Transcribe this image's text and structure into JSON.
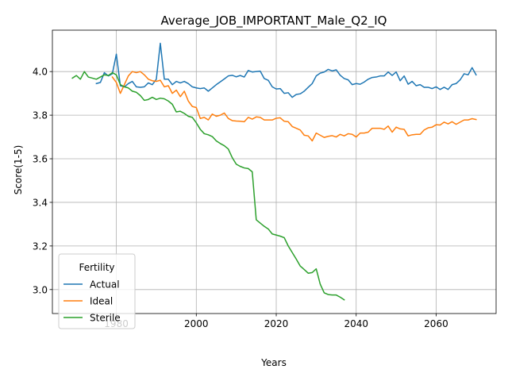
{
  "chart_data": {
    "type": "line",
    "title": "Average_JOB_IMPORTANT_Male_Q2_IQ",
    "xlabel": "Years",
    "ylabel": "Score(1-5)",
    "xlim": [
      1964,
      2075
    ],
    "ylim": [
      2.89,
      4.19
    ],
    "xticks": [
      1980,
      2000,
      2020,
      2040,
      2060
    ],
    "yticks": [
      3.0,
      3.2,
      3.4,
      3.6,
      3.8,
      4.0
    ],
    "grid": true,
    "legend": {
      "title": "Fertility",
      "position": "lower-left"
    },
    "series": [
      {
        "name": "Actual",
        "color": "#1f77b4",
        "x": [
          1975,
          1976,
          1977,
          1978,
          1979,
          1980,
          1981,
          1982,
          1983,
          1984,
          1985,
          1986,
          1987,
          1988,
          1989,
          1990,
          1991,
          1992,
          1993,
          1994,
          1995,
          1996,
          1997,
          1998,
          1999,
          2000,
          2001,
          2002,
          2003,
          2004,
          2005,
          2006,
          2007,
          2008,
          2009,
          2010,
          2011,
          2012,
          2013,
          2014,
          2015,
          2016,
          2017,
          2018,
          2019,
          2020,
          2021,
          2022,
          2023,
          2024,
          2025,
          2026,
          2027,
          2028,
          2029,
          2030,
          2031,
          2032,
          2033,
          2034,
          2035,
          2036,
          2037,
          2038,
          2039,
          2040,
          2041,
          2042,
          2043,
          2044,
          2045,
          2046,
          2047,
          2048,
          2049,
          2050,
          2051,
          2052,
          2053,
          2054,
          2055,
          2056,
          2057,
          2058,
          2059,
          2060,
          2061,
          2062,
          2063,
          2064,
          2065,
          2066,
          2067,
          2068,
          2069,
          2070
        ],
        "y": [
          3.945,
          3.95,
          3.995,
          3.98,
          3.99,
          4.08,
          3.935,
          3.93,
          3.945,
          3.955,
          3.93,
          3.928,
          3.93,
          3.948,
          3.94,
          3.965,
          4.13,
          3.965,
          3.965,
          3.94,
          3.955,
          3.948,
          3.955,
          3.945,
          3.93,
          3.925,
          3.922,
          3.925,
          3.91,
          3.925,
          3.94,
          3.953,
          3.966,
          3.98,
          3.983,
          3.976,
          3.982,
          3.975,
          4.005,
          3.998,
          4.0,
          4.002,
          3.968,
          3.96,
          3.93,
          3.92,
          3.922,
          3.9,
          3.903,
          3.882,
          3.895,
          3.898,
          3.91,
          3.928,
          3.945,
          3.98,
          3.993,
          3.998,
          4.01,
          4.003,
          4.008,
          3.983,
          3.968,
          3.962,
          3.94,
          3.945,
          3.942,
          3.952,
          3.965,
          3.973,
          3.975,
          3.98,
          3.98,
          3.998,
          3.982,
          3.998,
          3.958,
          3.98,
          3.942,
          3.955,
          3.935,
          3.94,
          3.928,
          3.928,
          3.922,
          3.93,
          3.918,
          3.928,
          3.918,
          3.94,
          3.945,
          3.962,
          3.99,
          3.985,
          4.018,
          3.985
        ]
      },
      {
        "name": "Ideal",
        "color": "#ff7f0e",
        "x": [
          1979,
          1980,
          1981,
          1982,
          1983,
          1984,
          1985,
          1986,
          1987,
          1988,
          1989,
          1990,
          1991,
          1992,
          1993,
          1994,
          1995,
          1996,
          1997,
          1998,
          1999,
          2000,
          2001,
          2002,
          2003,
          2004,
          2005,
          2006,
          2007,
          2008,
          2009,
          2010,
          2011,
          2012,
          2013,
          2014,
          2015,
          2016,
          2017,
          2018,
          2019,
          2020,
          2021,
          2022,
          2023,
          2024,
          2025,
          2026,
          2027,
          2028,
          2029,
          2030,
          2031,
          2032,
          2033,
          2034,
          2035,
          2036,
          2037,
          2038,
          2039,
          2040,
          2041,
          2042,
          2043,
          2044,
          2045,
          2046,
          2047,
          2048,
          2049,
          2050,
          2051,
          2052,
          2053,
          2054,
          2055,
          2056,
          2057,
          2058,
          2059,
          2060,
          2061,
          2062,
          2063,
          2064,
          2065,
          2066,
          2067,
          2068,
          2069,
          2070
        ],
        "y": [
          3.975,
          3.95,
          3.9,
          3.94,
          3.98,
          4.0,
          3.995,
          4.0,
          3.985,
          3.965,
          3.958,
          3.955,
          3.96,
          3.93,
          3.935,
          3.9,
          3.915,
          3.885,
          3.91,
          3.865,
          3.84,
          3.835,
          3.785,
          3.79,
          3.778,
          3.805,
          3.795,
          3.8,
          3.81,
          3.785,
          3.775,
          3.773,
          3.772,
          3.77,
          3.79,
          3.782,
          3.792,
          3.79,
          3.778,
          3.778,
          3.778,
          3.786,
          3.788,
          3.772,
          3.77,
          3.748,
          3.74,
          3.732,
          3.708,
          3.705,
          3.682,
          3.718,
          3.708,
          3.698,
          3.703,
          3.706,
          3.7,
          3.712,
          3.705,
          3.715,
          3.712,
          3.7,
          3.718,
          3.718,
          3.722,
          3.74,
          3.74,
          3.74,
          3.735,
          3.75,
          3.722,
          3.745,
          3.737,
          3.735,
          3.705,
          3.71,
          3.712,
          3.712,
          3.732,
          3.742,
          3.745,
          3.756,
          3.755,
          3.768,
          3.76,
          3.77,
          3.758,
          3.768,
          3.778,
          3.778,
          3.784,
          3.78
        ]
      },
      {
        "name": "Sterile",
        "color": "#2ca02c",
        "x": [
          1969,
          1970,
          1971,
          1972,
          1973,
          1974,
          1975,
          1976,
          1977,
          1978,
          1979,
          1980,
          1981,
          1982,
          1983,
          1984,
          1985,
          1986,
          1987,
          1988,
          1989,
          1990,
          1991,
          1992,
          1993,
          1994,
          1995,
          1996,
          1997,
          1998,
          1999,
          2000,
          2001,
          2002,
          2003,
          2004,
          2005,
          2006,
          2007,
          2008,
          2009,
          2010,
          2011,
          2012,
          2013,
          2014,
          2015,
          2016,
          2017,
          2018,
          2019,
          2020,
          2021,
          2022,
          2023,
          2024,
          2025,
          2026,
          2027,
          2028,
          2029,
          2030,
          2031,
          2032,
          2033,
          2034,
          2035,
          2036,
          2037
        ],
        "y": [
          3.97,
          3.982,
          3.965,
          4.0,
          3.975,
          3.97,
          3.965,
          3.975,
          3.985,
          3.982,
          3.995,
          3.985,
          3.94,
          3.93,
          3.925,
          3.91,
          3.905,
          3.89,
          3.868,
          3.872,
          3.882,
          3.872,
          3.878,
          3.875,
          3.865,
          3.85,
          3.815,
          3.818,
          3.808,
          3.795,
          3.79,
          3.765,
          3.735,
          3.715,
          3.71,
          3.702,
          3.682,
          3.67,
          3.66,
          3.645,
          3.605,
          3.575,
          3.565,
          3.558,
          3.555,
          3.54,
          3.32,
          3.305,
          3.29,
          3.278,
          3.255,
          3.25,
          3.245,
          3.238,
          3.2,
          3.17,
          3.14,
          3.108,
          3.092,
          3.075,
          3.078,
          3.095,
          3.025,
          2.985,
          2.977,
          2.975,
          2.975,
          2.965,
          2.953
        ]
      }
    ]
  }
}
